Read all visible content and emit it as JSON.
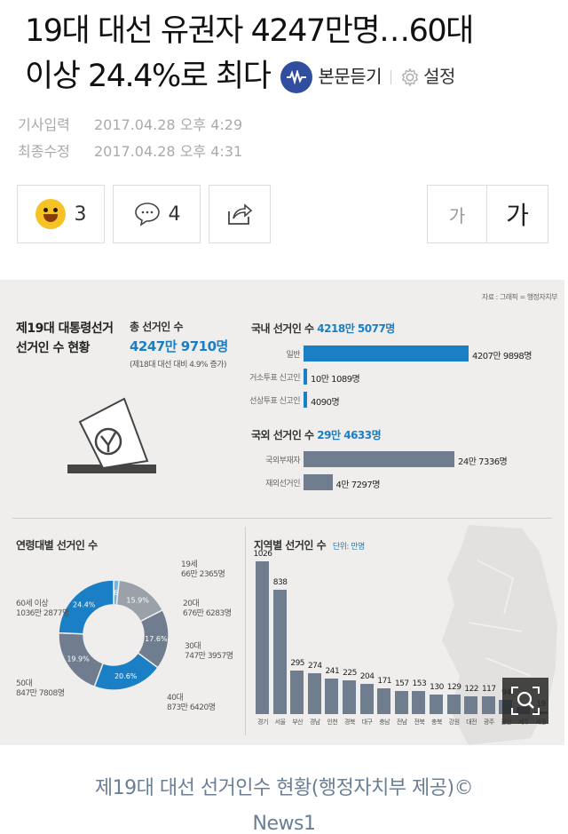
{
  "article": {
    "headline_line1": "19대 대선 유권자 4247만명…60대",
    "headline_line2": "이상 24.4%로 최다",
    "listen_label": "본문듣기",
    "settings_label": "설정",
    "published_label": "기사입력",
    "published_value": "2017.04.28 오후 4:29",
    "modified_label": "최종수정",
    "modified_value": "2017.04.28 오후 4:31",
    "reaction_count": "3",
    "comment_count": "4",
    "font_small_label": "가",
    "font_large_label": "가",
    "caption_line1": "제19대 대선 선거인수 현황(행정자치부 제공)©",
    "caption_line2": "News1"
  },
  "infographic": {
    "source": "자료 : 그래픽 = 행정자치부",
    "title_line1": "제19대 대통령선거",
    "title_line2": "선거인 수 현황",
    "total_label": "총 선거인 수",
    "total_value": "4247만 9710명",
    "total_note": "(제18대 대선 대비 4.9% 증가)",
    "domestic_label": "국내 선거인 수",
    "domestic_value": "4218만 5077명",
    "overseas_label": "국외 선거인 수",
    "overseas_value": "29만 4633명",
    "age_title": "연령대별 선거인 수",
    "region_title": "지역별 선거인 수",
    "region_unit": "단위: 만명"
  },
  "chart_data": [
    {
      "type": "bar",
      "orientation": "horizontal",
      "title": "국내 선거인 수",
      "categories": [
        "일반",
        "거소투표 신고인",
        "선상투표 신고인"
      ],
      "values": [
        42079898,
        101089,
        4090
      ],
      "value_labels": [
        "4207만 9898명",
        "10만 1089명",
        "4090명"
      ]
    },
    {
      "type": "bar",
      "orientation": "horizontal",
      "title": "국외 선거인 수",
      "categories": [
        "국외부재자",
        "재외선거인"
      ],
      "values": [
        247336,
        47297
      ],
      "value_labels": [
        "24만 7336명",
        "4만 7297명"
      ]
    },
    {
      "type": "pie",
      "title": "연령대별 선거인 수",
      "categories": [
        "19세",
        "20대",
        "30대",
        "40대",
        "50대",
        "60세 이상"
      ],
      "values": [
        1.6,
        15.9,
        17.6,
        20.6,
        19.9,
        24.4
      ],
      "percent_labels": [
        "1.6%",
        "15.9%",
        "17.6%",
        "20.6%",
        "19.9%",
        "24.4%"
      ],
      "count_labels": [
        "66만 2365명",
        "676만 6283명",
        "747만 3957명",
        "873만 6420명",
        "847만 7808명",
        "1036만 2877명"
      ],
      "colors": [
        "#6fb8e6",
        "#9aa1a9",
        "#6f7d8e",
        "#1a7fc4",
        "#6f7d8e",
        "#1a7fc4"
      ]
    },
    {
      "type": "bar",
      "title": "지역별 선거인 수",
      "categories": [
        "경기",
        "서울",
        "부산",
        "경남",
        "인천",
        "경북",
        "대구",
        "충남",
        "전남",
        "전북",
        "충북",
        "강원",
        "대전",
        "광주",
        "울산",
        "제주",
        "세종"
      ],
      "values": [
        1026,
        838,
        295,
        274,
        241,
        225,
        204,
        171,
        157,
        153,
        130,
        129,
        122,
        117,
        94,
        50,
        19
      ],
      "value_labels": [
        "1026",
        "838",
        "295",
        "274",
        "241",
        "225",
        "204",
        "171",
        "157",
        "153",
        "130",
        "129",
        "122",
        "117",
        "94",
        "",
        "19"
      ],
      "ylim": [
        0,
        1026
      ]
    }
  ]
}
